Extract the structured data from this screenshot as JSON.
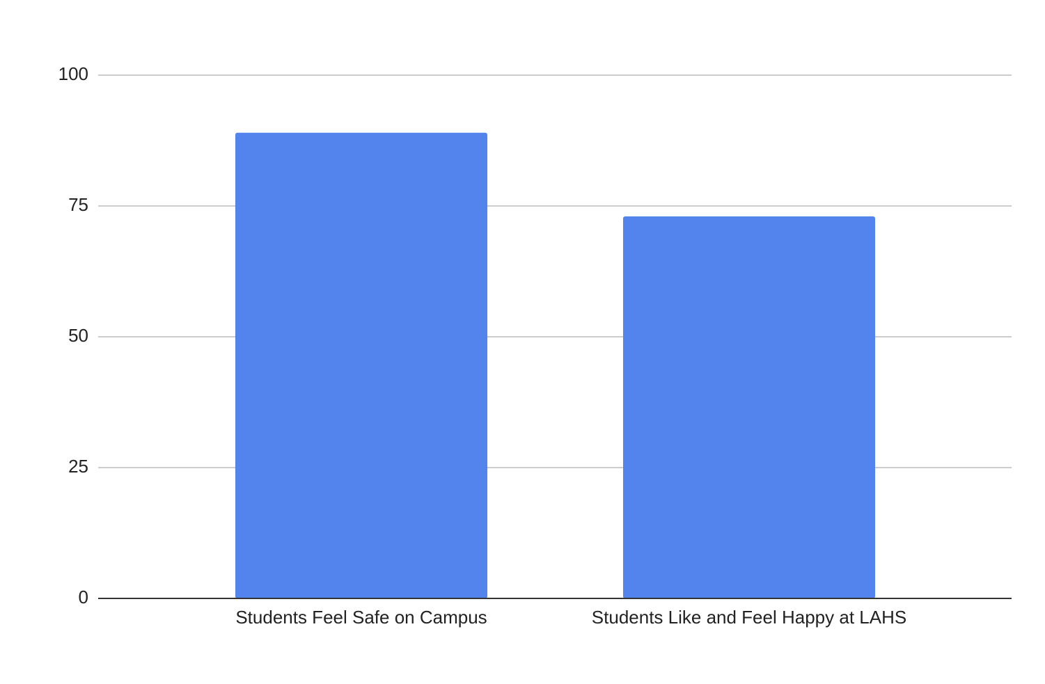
{
  "chart_data": {
    "type": "bar",
    "categories": [
      "Students Feel Safe on Campus",
      "Students Like and Feel Happy at LAHS"
    ],
    "values": [
      89,
      73
    ],
    "color": "#5383ec",
    "ylim": [
      0,
      100
    ],
    "yticks": [
      0,
      25,
      50,
      75,
      100
    ],
    "grid": true
  }
}
